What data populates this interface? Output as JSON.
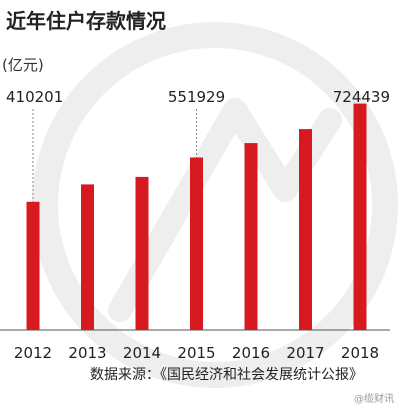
{
  "chart_data": {
    "type": "bar",
    "title": "近年住户存款情况",
    "unit_label": "(亿元)",
    "categories": [
      "2012",
      "2013",
      "2014",
      "2015",
      "2016",
      "2017",
      "2018"
    ],
    "values": [
      410201,
      466000,
      490000,
      551929,
      598000,
      643000,
      724439
    ],
    "annotations": [
      {
        "category": "2012",
        "label": "410201"
      },
      {
        "category": "2015",
        "label": "551929"
      },
      {
        "category": "2018",
        "label": "724439"
      }
    ],
    "source": "数据来源：《国民经济和社会发展统计公报》",
    "watermark": "@缆财讯",
    "colors": {
      "bar": "#d71920",
      "text": "#222222",
      "axis": "#555555",
      "guide": "#888888",
      "backdrop": "#eeeeee"
    },
    "ylim": [
      0,
      800000
    ],
    "grid": false,
    "legend": false
  }
}
